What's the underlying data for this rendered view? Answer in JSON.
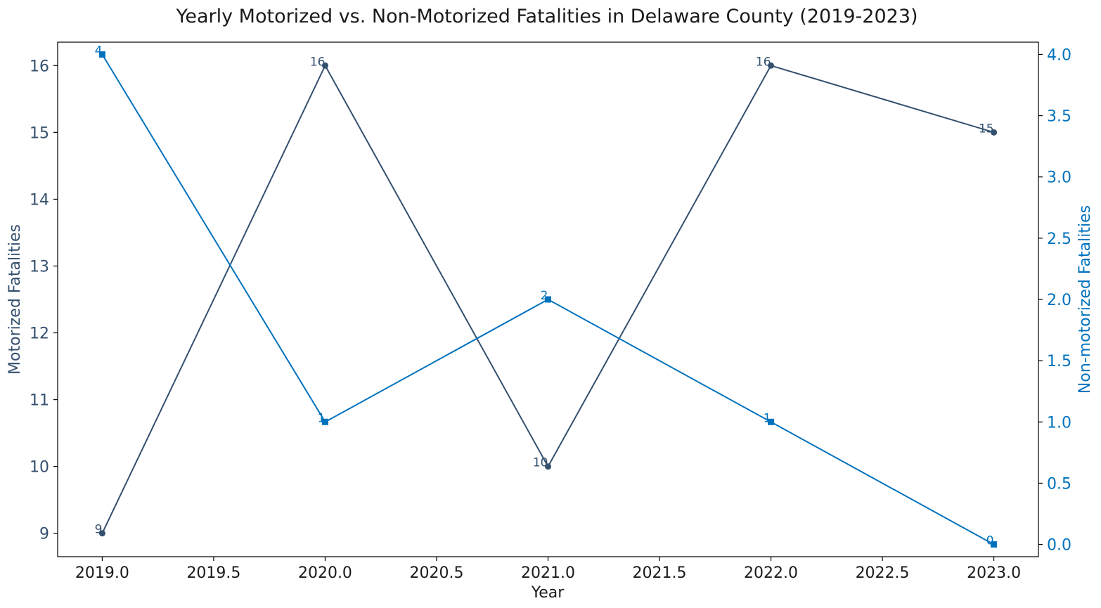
{
  "chart_data": {
    "type": "line",
    "title": "Yearly Motorized vs. Non-Motorized Fatalities in Delaware County (2019-2023)",
    "xlabel": "Year",
    "ylabel_left": "Motorized Fatalities",
    "ylabel_right": "Non-motorized Fatalities",
    "x": [
      2019,
      2020,
      2021,
      2022,
      2023
    ],
    "xlim": [
      2018.8,
      2023.2
    ],
    "xticks": [
      2019.0,
      2019.5,
      2020.0,
      2020.5,
      2021.0,
      2021.5,
      2022.0,
      2022.5,
      2023.0
    ],
    "xtick_labels": [
      "2019.0",
      "2019.5",
      "2020.0",
      "2020.5",
      "2021.0",
      "2021.5",
      "2022.0",
      "2022.5",
      "2023.0"
    ],
    "ylim_left": [
      8.65,
      16.35
    ],
    "yticks_left": [
      9,
      10,
      11,
      12,
      13,
      14,
      15,
      16
    ],
    "ytick_labels_left": [
      "9",
      "10",
      "11",
      "12",
      "13",
      "14",
      "15",
      "16"
    ],
    "ylim_right": [
      -0.1,
      4.1
    ],
    "yticks_right": [
      0.0,
      0.5,
      1.0,
      1.5,
      2.0,
      2.5,
      3.0,
      3.5,
      4.0
    ],
    "ytick_labels_right": [
      "0.0",
      "0.5",
      "1.0",
      "1.5",
      "2.0",
      "2.5",
      "3.0",
      "3.5",
      "4.0"
    ],
    "grid": false,
    "legend": "none",
    "series": [
      {
        "axis": "left",
        "values": [
          9,
          16,
          10,
          16,
          15
        ],
        "labels": [
          "9",
          "16",
          "10",
          "16",
          "15"
        ],
        "color": "#34506f",
        "marker": "circle"
      },
      {
        "axis": "right",
        "values": [
          4,
          1,
          2,
          1,
          0
        ],
        "labels": [
          "4",
          "1",
          "2",
          "1",
          "0"
        ],
        "color": "#0072bd",
        "marker": "square"
      }
    ]
  }
}
